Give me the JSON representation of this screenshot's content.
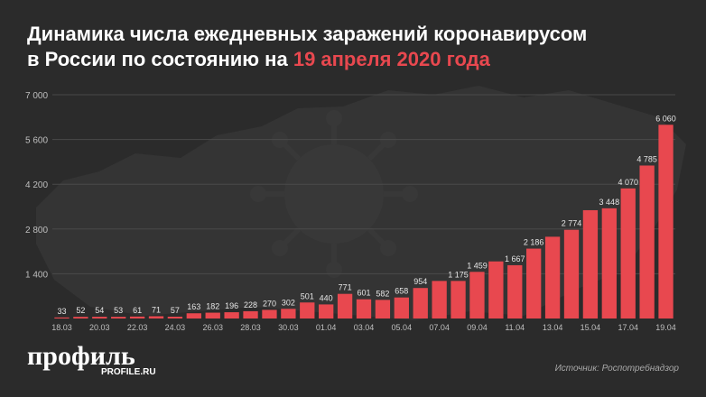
{
  "title": {
    "line1": "Динамика числа ежедневных заражений коронавирусом",
    "line2_prefix": "в России по состоянию на ",
    "line2_accent": "19 апреля 2020 года"
  },
  "colors": {
    "bar": "#e8484f",
    "accent": "#e8484f",
    "background": "#2b2b2b",
    "text": "#ffffff",
    "muted": "#bfbfbf"
  },
  "logo": {
    "name": "профиль",
    "site": "PROFILE.RU"
  },
  "source": "Источник: Роспотребнадзор",
  "chart_data": {
    "type": "bar",
    "title": "Динамика числа ежедневных заражений коронавирусом в России по состоянию на 19 апреля 2020 года",
    "xlabel": "",
    "ylabel": "",
    "ylim": [
      0,
      7000
    ],
    "yticks": [
      1400,
      2800,
      4200,
      5600,
      7000
    ],
    "ytick_labels": [
      "1 400",
      "2 800",
      "4 200",
      "5 600",
      "7 000"
    ],
    "grid": true,
    "categories": [
      "18.03",
      "19.03",
      "20.03",
      "21.03",
      "22.03",
      "23.03",
      "24.03",
      "25.03",
      "26.03",
      "27.03",
      "28.03",
      "29.03",
      "30.03",
      "31.03",
      "01.04",
      "02.04",
      "03.04",
      "04.04",
      "05.04",
      "06.04",
      "07.04",
      "08.04",
      "09.04",
      "10.04",
      "11.04",
      "12.04",
      "13.04",
      "14.04",
      "15.04",
      "16.04",
      "17.04",
      "18.04",
      "19.04"
    ],
    "xtick_labels": [
      "18.03",
      "",
      "20.03",
      "",
      "22.03",
      "",
      "24.03",
      "",
      "26.03",
      "",
      "28.03",
      "",
      "30.03",
      "",
      "01.04",
      "",
      "03.04",
      "",
      "05.04",
      "",
      "07.04",
      "",
      "09.04",
      "",
      "11.04",
      "",
      "13.04",
      "",
      "15.04",
      "",
      "17.04",
      "",
      "19.04"
    ],
    "values": [
      33,
      52,
      54,
      53,
      61,
      71,
      57,
      163,
      182,
      196,
      228,
      270,
      302,
      501,
      440,
      771,
      601,
      582,
      658,
      954,
      1175,
      1175,
      1459,
      1786,
      1667,
      2186,
      2558,
      2774,
      3388,
      3448,
      4070,
      4785,
      6060
    ],
    "value_labels": [
      "33",
      "52",
      "54",
      "53",
      "61",
      "71",
      "57",
      "163",
      "182",
      "196",
      "228",
      "270",
      "302",
      "501",
      "440",
      "771",
      "601",
      "582",
      "658",
      "954",
      "",
      "1 175",
      "1 459",
      "",
      "1 667",
      "2 186",
      "",
      "2 774",
      "",
      "3 448",
      "4 070",
      "4 785",
      "6 060"
    ]
  }
}
